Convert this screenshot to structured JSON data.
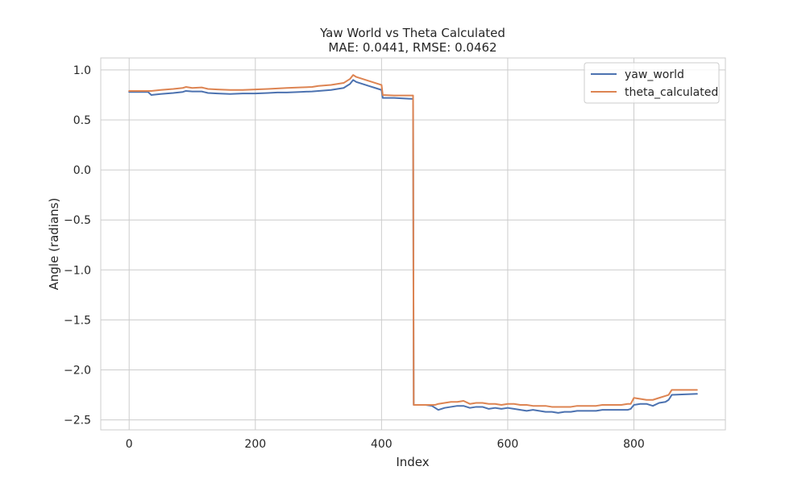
{
  "chart_data": {
    "type": "line",
    "title": "Yaw World vs Theta Calculated",
    "subtitle": "MAE: 0.0441, RMSE: 0.0462",
    "xlabel": "Index",
    "ylabel": "Angle (radians)",
    "xlim": [
      -45,
      945
    ],
    "ylim": [
      -2.6,
      1.12
    ],
    "xticks": [
      0,
      200,
      400,
      600,
      800
    ],
    "xtick_labels": [
      "0",
      "200",
      "400",
      "600",
      "800"
    ],
    "yticks": [
      1.0,
      0.5,
      0.0,
      -0.5,
      -1.0,
      -1.5,
      -2.0,
      -2.5
    ],
    "ytick_labels": [
      "1.0",
      "0.5",
      "0.0",
      "−0.5",
      "−1.0",
      "−1.5",
      "−2.0",
      "−2.5"
    ],
    "grid": true,
    "legend_position": "upper right",
    "series": [
      {
        "name": "yaw_world",
        "color": "#4C72B0",
        "x": [
          0,
          30,
          35,
          50,
          70,
          85,
          90,
          100,
          115,
          125,
          140,
          160,
          180,
          200,
          220,
          235,
          250,
          270,
          290,
          300,
          310,
          320,
          330,
          340,
          345,
          350,
          355,
          360,
          370,
          380,
          390,
          400,
          402,
          420,
          450,
          451,
          452,
          455,
          460,
          470,
          480,
          485,
          490,
          500,
          510,
          520,
          530,
          540,
          550,
          560,
          570,
          580,
          590,
          600,
          610,
          620,
          630,
          640,
          650,
          660,
          670,
          680,
          690,
          700,
          710,
          720,
          730,
          740,
          750,
          760,
          770,
          780,
          790,
          795,
          800,
          810,
          820,
          830,
          840,
          850,
          855,
          860,
          900
        ],
        "y": [
          0.78,
          0.78,
          0.75,
          0.76,
          0.77,
          0.78,
          0.79,
          0.785,
          0.785,
          0.77,
          0.765,
          0.76,
          0.765,
          0.765,
          0.77,
          0.775,
          0.775,
          0.78,
          0.785,
          0.79,
          0.795,
          0.8,
          0.81,
          0.82,
          0.84,
          0.86,
          0.9,
          0.88,
          0.86,
          0.84,
          0.82,
          0.8,
          0.72,
          0.72,
          0.71,
          -2.35,
          -2.35,
          -2.35,
          -2.35,
          -2.35,
          -2.36,
          -2.38,
          -2.4,
          -2.38,
          -2.37,
          -2.36,
          -2.36,
          -2.38,
          -2.37,
          -2.37,
          -2.39,
          -2.38,
          -2.39,
          -2.38,
          -2.39,
          -2.4,
          -2.41,
          -2.4,
          -2.41,
          -2.42,
          -2.42,
          -2.43,
          -2.42,
          -2.42,
          -2.41,
          -2.41,
          -2.41,
          -2.41,
          -2.4,
          -2.4,
          -2.4,
          -2.4,
          -2.4,
          -2.39,
          -2.35,
          -2.34,
          -2.34,
          -2.36,
          -2.33,
          -2.32,
          -2.3,
          -2.25,
          -2.24
        ]
      },
      {
        "name": "theta_calculated",
        "color": "#DD8452",
        "x": [
          0,
          30,
          35,
          50,
          70,
          85,
          90,
          100,
          115,
          125,
          140,
          160,
          180,
          200,
          220,
          235,
          250,
          270,
          290,
          300,
          310,
          320,
          330,
          340,
          345,
          350,
          355,
          360,
          370,
          380,
          390,
          400,
          402,
          420,
          450,
          451,
          452,
          455,
          460,
          470,
          480,
          485,
          490,
          500,
          510,
          520,
          530,
          540,
          550,
          560,
          570,
          580,
          590,
          600,
          610,
          620,
          630,
          640,
          650,
          660,
          670,
          680,
          690,
          700,
          710,
          720,
          730,
          740,
          750,
          760,
          770,
          780,
          790,
          795,
          800,
          810,
          820,
          830,
          840,
          850,
          855,
          860,
          900
        ],
        "y": [
          0.79,
          0.79,
          0.79,
          0.8,
          0.81,
          0.82,
          0.83,
          0.82,
          0.825,
          0.81,
          0.805,
          0.8,
          0.8,
          0.805,
          0.81,
          0.815,
          0.82,
          0.825,
          0.83,
          0.84,
          0.845,
          0.85,
          0.86,
          0.87,
          0.89,
          0.91,
          0.95,
          0.93,
          0.91,
          0.89,
          0.87,
          0.85,
          0.75,
          0.745,
          0.745,
          -2.35,
          -2.35,
          -2.35,
          -2.35,
          -2.35,
          -2.35,
          -2.35,
          -2.34,
          -2.33,
          -2.32,
          -2.32,
          -2.31,
          -2.34,
          -2.33,
          -2.33,
          -2.34,
          -2.34,
          -2.35,
          -2.34,
          -2.34,
          -2.35,
          -2.35,
          -2.36,
          -2.36,
          -2.36,
          -2.37,
          -2.37,
          -2.37,
          -2.37,
          -2.36,
          -2.36,
          -2.36,
          -2.36,
          -2.35,
          -2.35,
          -2.35,
          -2.35,
          -2.34,
          -2.34,
          -2.28,
          -2.29,
          -2.3,
          -2.3,
          -2.28,
          -2.26,
          -2.25,
          -2.2,
          -2.2
        ]
      }
    ]
  }
}
